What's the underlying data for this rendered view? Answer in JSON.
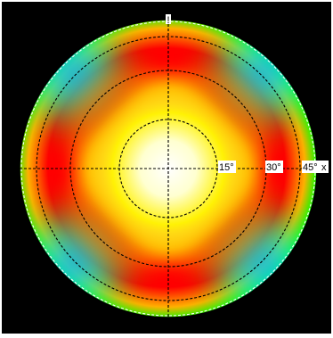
{
  "plot": {
    "top_marker": "!",
    "ring_labels": [
      "15°",
      "30°",
      "45°"
    ],
    "edge_marker": "x"
  },
  "colors": {
    "background": "#000000",
    "center": "#ffffff",
    "inner": "#fff200",
    "mid": "#ff7a00",
    "ridge": "#ff0000",
    "outer": "#00ff00",
    "edge": "#0000ff"
  },
  "gridlines": {
    "style": "dashed",
    "color": "#000000"
  }
}
